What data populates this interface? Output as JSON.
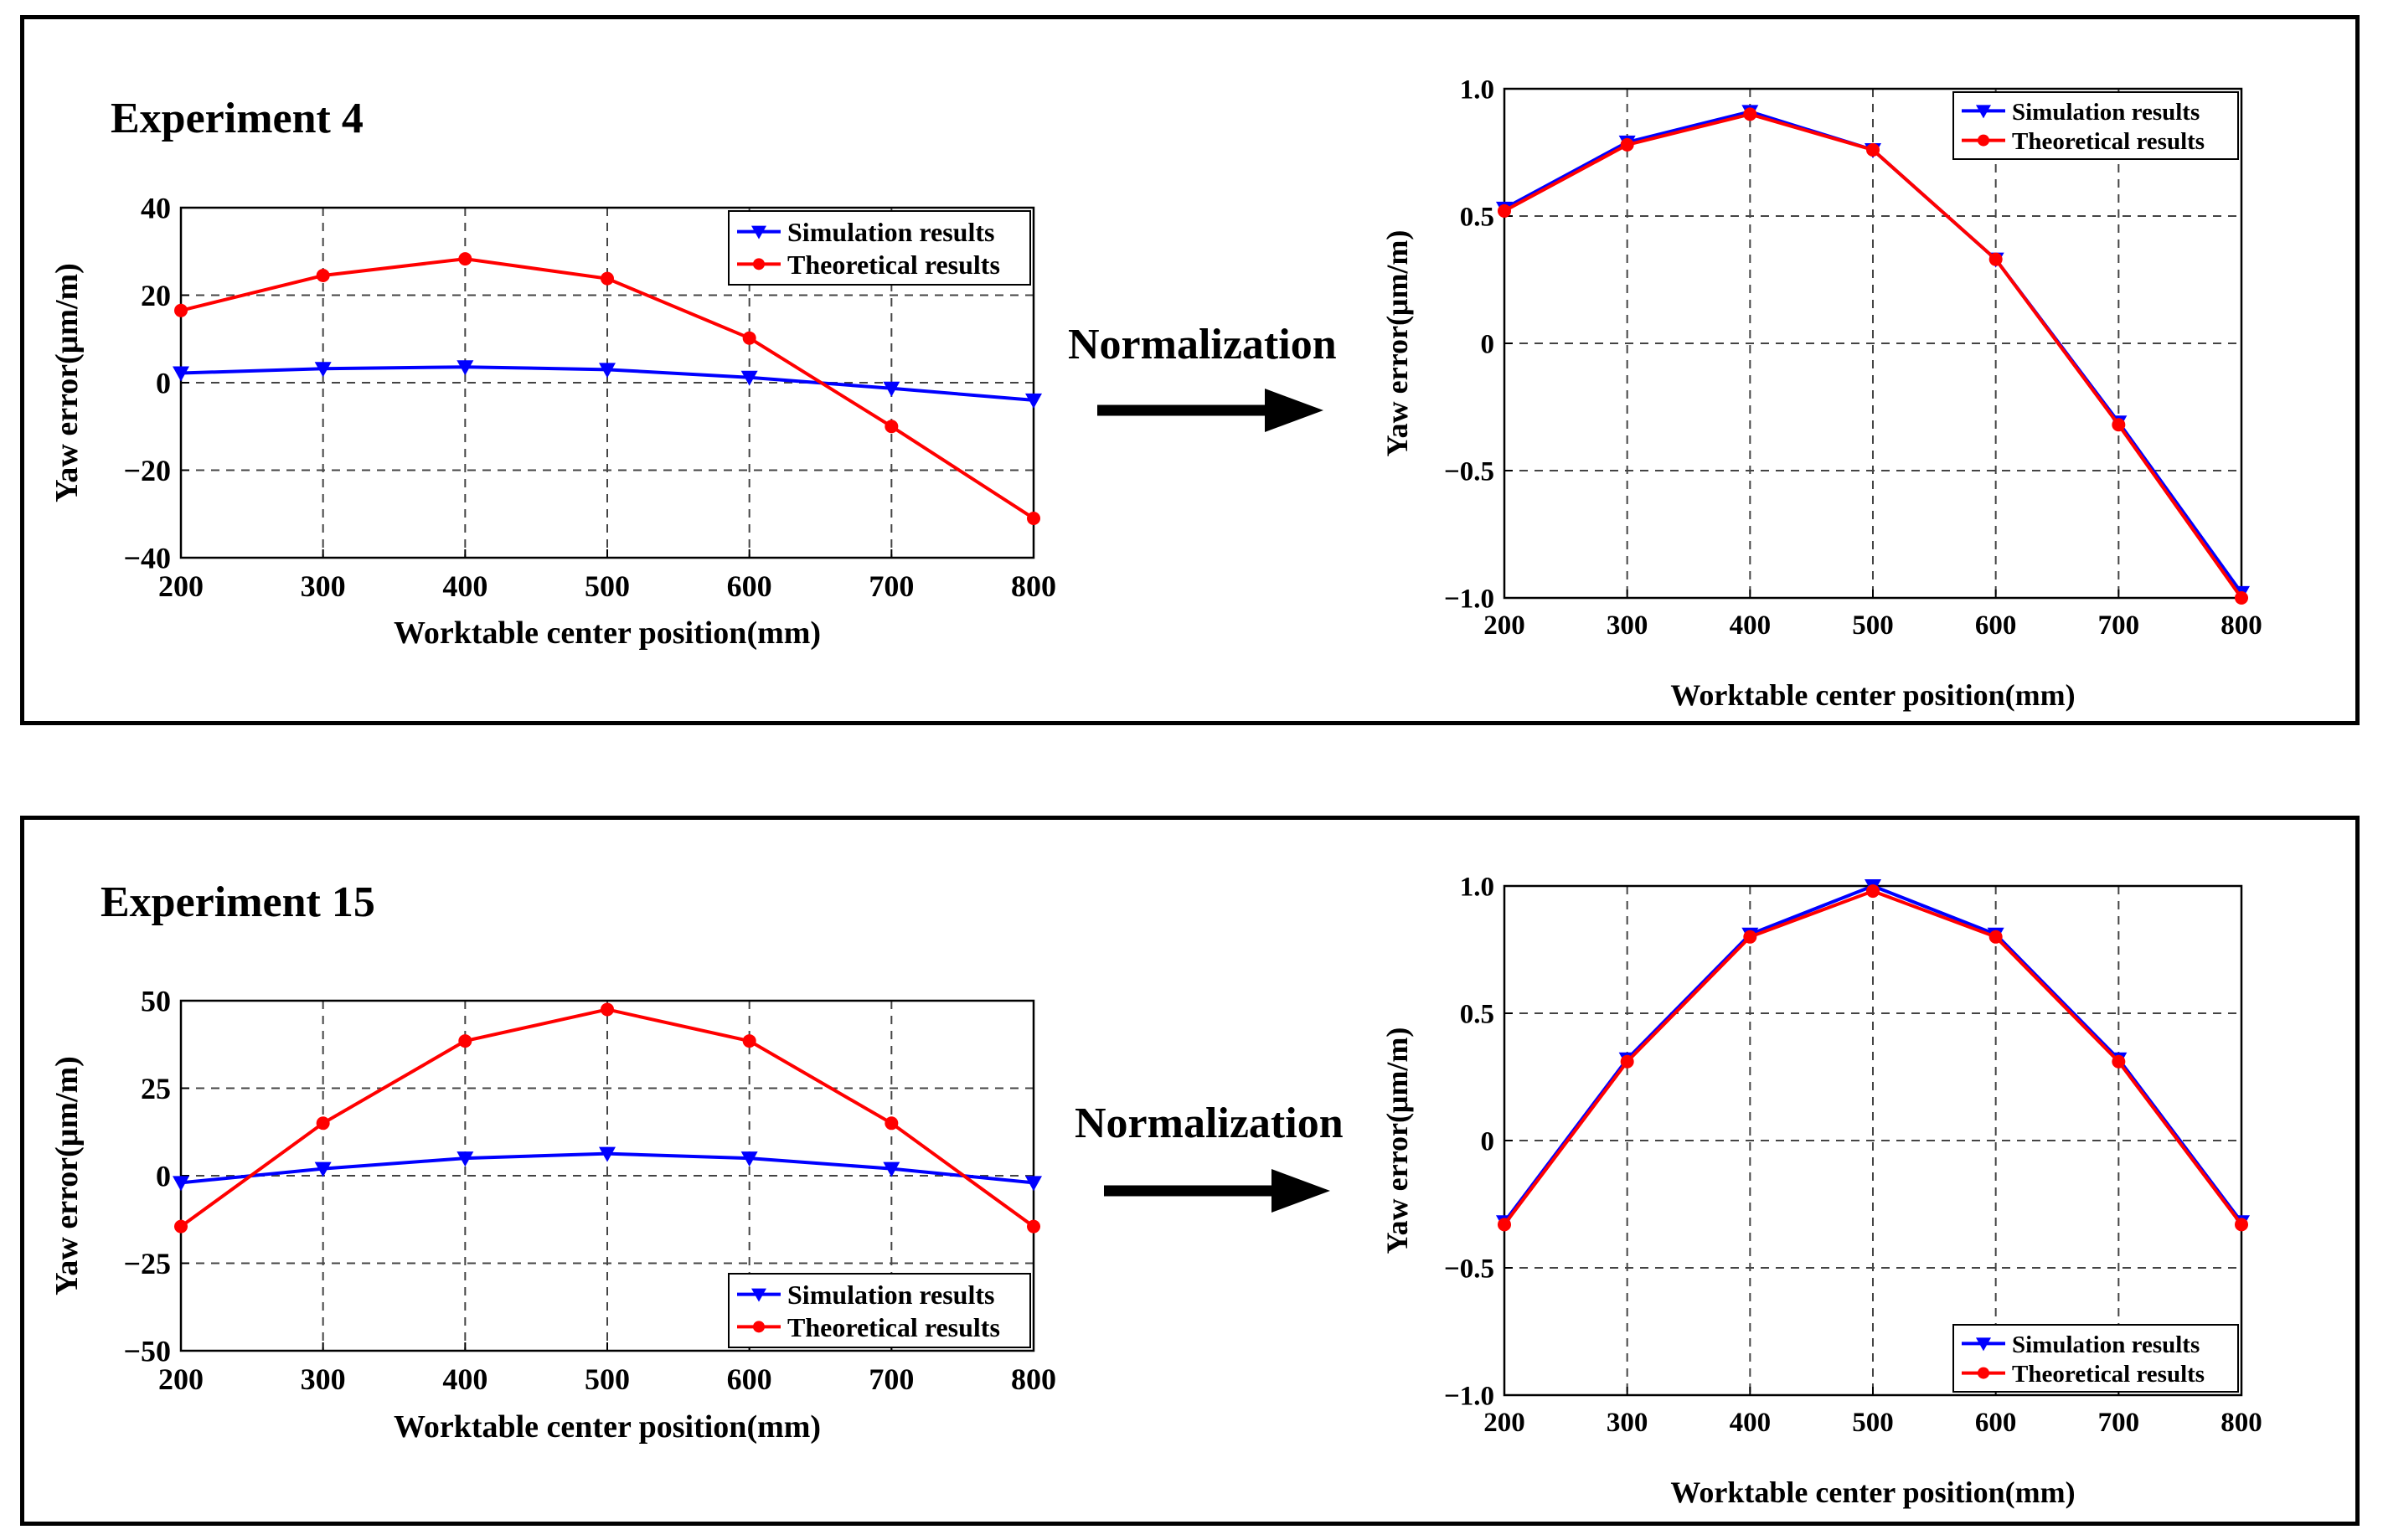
{
  "panels": [
    {
      "title": "Experiment 4",
      "arrow_label": "Normalization"
    },
    {
      "title": "Experiment 15",
      "arrow_label": "Normalization"
    }
  ],
  "chart_data": [
    {
      "id": "exp4-raw",
      "type": "line",
      "title": "",
      "xlabel": "Worktable center position(mm)",
      "ylabel": "Yaw error(μm/m)",
      "xlim": [
        200,
        800
      ],
      "ylim": [
        -40,
        40
      ],
      "x": [
        200,
        300,
        400,
        500,
        600,
        700,
        800
      ],
      "xticks": [
        200,
        300,
        400,
        500,
        600,
        700,
        800
      ],
      "yticks": [
        -40,
        -20,
        0,
        20,
        40
      ],
      "ytick_labels": [
        "−40",
        "−20",
        "0",
        "20",
        "40"
      ],
      "grid": true,
      "legend_position": "top-right",
      "series": [
        {
          "name": "Simulation results",
          "color": "#0000ff",
          "marker": "triangle-down",
          "values": [
            2.2,
            3.2,
            3.6,
            3.0,
            1.2,
            -1.3,
            -4.0
          ]
        },
        {
          "name": "Theoretical results",
          "color": "#ff0000",
          "marker": "circle",
          "values": [
            16.5,
            24.5,
            28.3,
            23.8,
            10.2,
            -10.0,
            -31.0
          ]
        }
      ]
    },
    {
      "id": "exp4-norm",
      "type": "line",
      "title": "",
      "xlabel": "Worktable center position(mm)",
      "ylabel": "Yaw error(μm/m)",
      "xlim": [
        200,
        800
      ],
      "ylim": [
        -1.0,
        1.0
      ],
      "x": [
        200,
        300,
        400,
        500,
        600,
        700,
        800
      ],
      "xticks": [
        200,
        300,
        400,
        500,
        600,
        700,
        800
      ],
      "yticks": [
        -1.0,
        -0.5,
        0,
        0.5,
        1.0
      ],
      "ytick_labels": [
        "−1.0",
        "−0.5",
        "0",
        "0.5",
        "1.0"
      ],
      "grid": true,
      "legend_position": "top-right",
      "series": [
        {
          "name": "Simulation results",
          "color": "#0000ff",
          "marker": "triangle-down",
          "values": [
            0.53,
            0.79,
            0.91,
            0.76,
            0.33,
            -0.31,
            -0.98
          ]
        },
        {
          "name": "Theoretical results",
          "color": "#ff0000",
          "marker": "circle",
          "values": [
            0.52,
            0.78,
            0.9,
            0.76,
            0.33,
            -0.32,
            -1.0
          ]
        }
      ]
    },
    {
      "id": "exp15-raw",
      "type": "line",
      "title": "",
      "xlabel": "Worktable center position(mm)",
      "ylabel": "Yaw error(μm/m)",
      "xlim": [
        200,
        800
      ],
      "ylim": [
        -50,
        50
      ],
      "x": [
        200,
        300,
        400,
        500,
        600,
        700,
        800
      ],
      "xticks": [
        200,
        300,
        400,
        500,
        600,
        700,
        800
      ],
      "yticks": [
        -50,
        -25,
        0,
        25,
        50
      ],
      "ytick_labels": [
        "−50",
        "−25",
        "0",
        "25",
        "50"
      ],
      "grid": true,
      "legend_position": "bottom-right",
      "series": [
        {
          "name": "Simulation results",
          "color": "#0000ff",
          "marker": "triangle-down",
          "values": [
            -2.0,
            2.0,
            5.0,
            6.3,
            5.0,
            2.0,
            -2.0
          ]
        },
        {
          "name": "Theoretical results",
          "color": "#ff0000",
          "marker": "circle",
          "values": [
            -14.5,
            15.0,
            38.5,
            47.5,
            38.5,
            15.0,
            -14.5
          ]
        }
      ]
    },
    {
      "id": "exp15-norm",
      "type": "line",
      "title": "",
      "xlabel": "Worktable center position(mm)",
      "ylabel": "Yaw error(μm/m)",
      "xlim": [
        200,
        800
      ],
      "ylim": [
        -1.0,
        1.0
      ],
      "x": [
        200,
        300,
        400,
        500,
        600,
        700,
        800
      ],
      "xticks": [
        200,
        300,
        400,
        500,
        600,
        700,
        800
      ],
      "yticks": [
        -1.0,
        -0.5,
        0,
        0.5,
        1.0
      ],
      "ytick_labels": [
        "−1.0",
        "−0.5",
        "0",
        "0.5",
        "1.0"
      ],
      "grid": true,
      "legend_position": "bottom-right",
      "series": [
        {
          "name": "Simulation results",
          "color": "#0000ff",
          "marker": "triangle-down",
          "values": [
            -0.32,
            0.32,
            0.81,
            1.0,
            0.81,
            0.32,
            -0.32
          ]
        },
        {
          "name": "Theoretical results",
          "color": "#ff0000",
          "marker": "circle",
          "values": [
            -0.33,
            0.31,
            0.8,
            0.98,
            0.8,
            0.31,
            -0.33
          ]
        }
      ]
    }
  ]
}
